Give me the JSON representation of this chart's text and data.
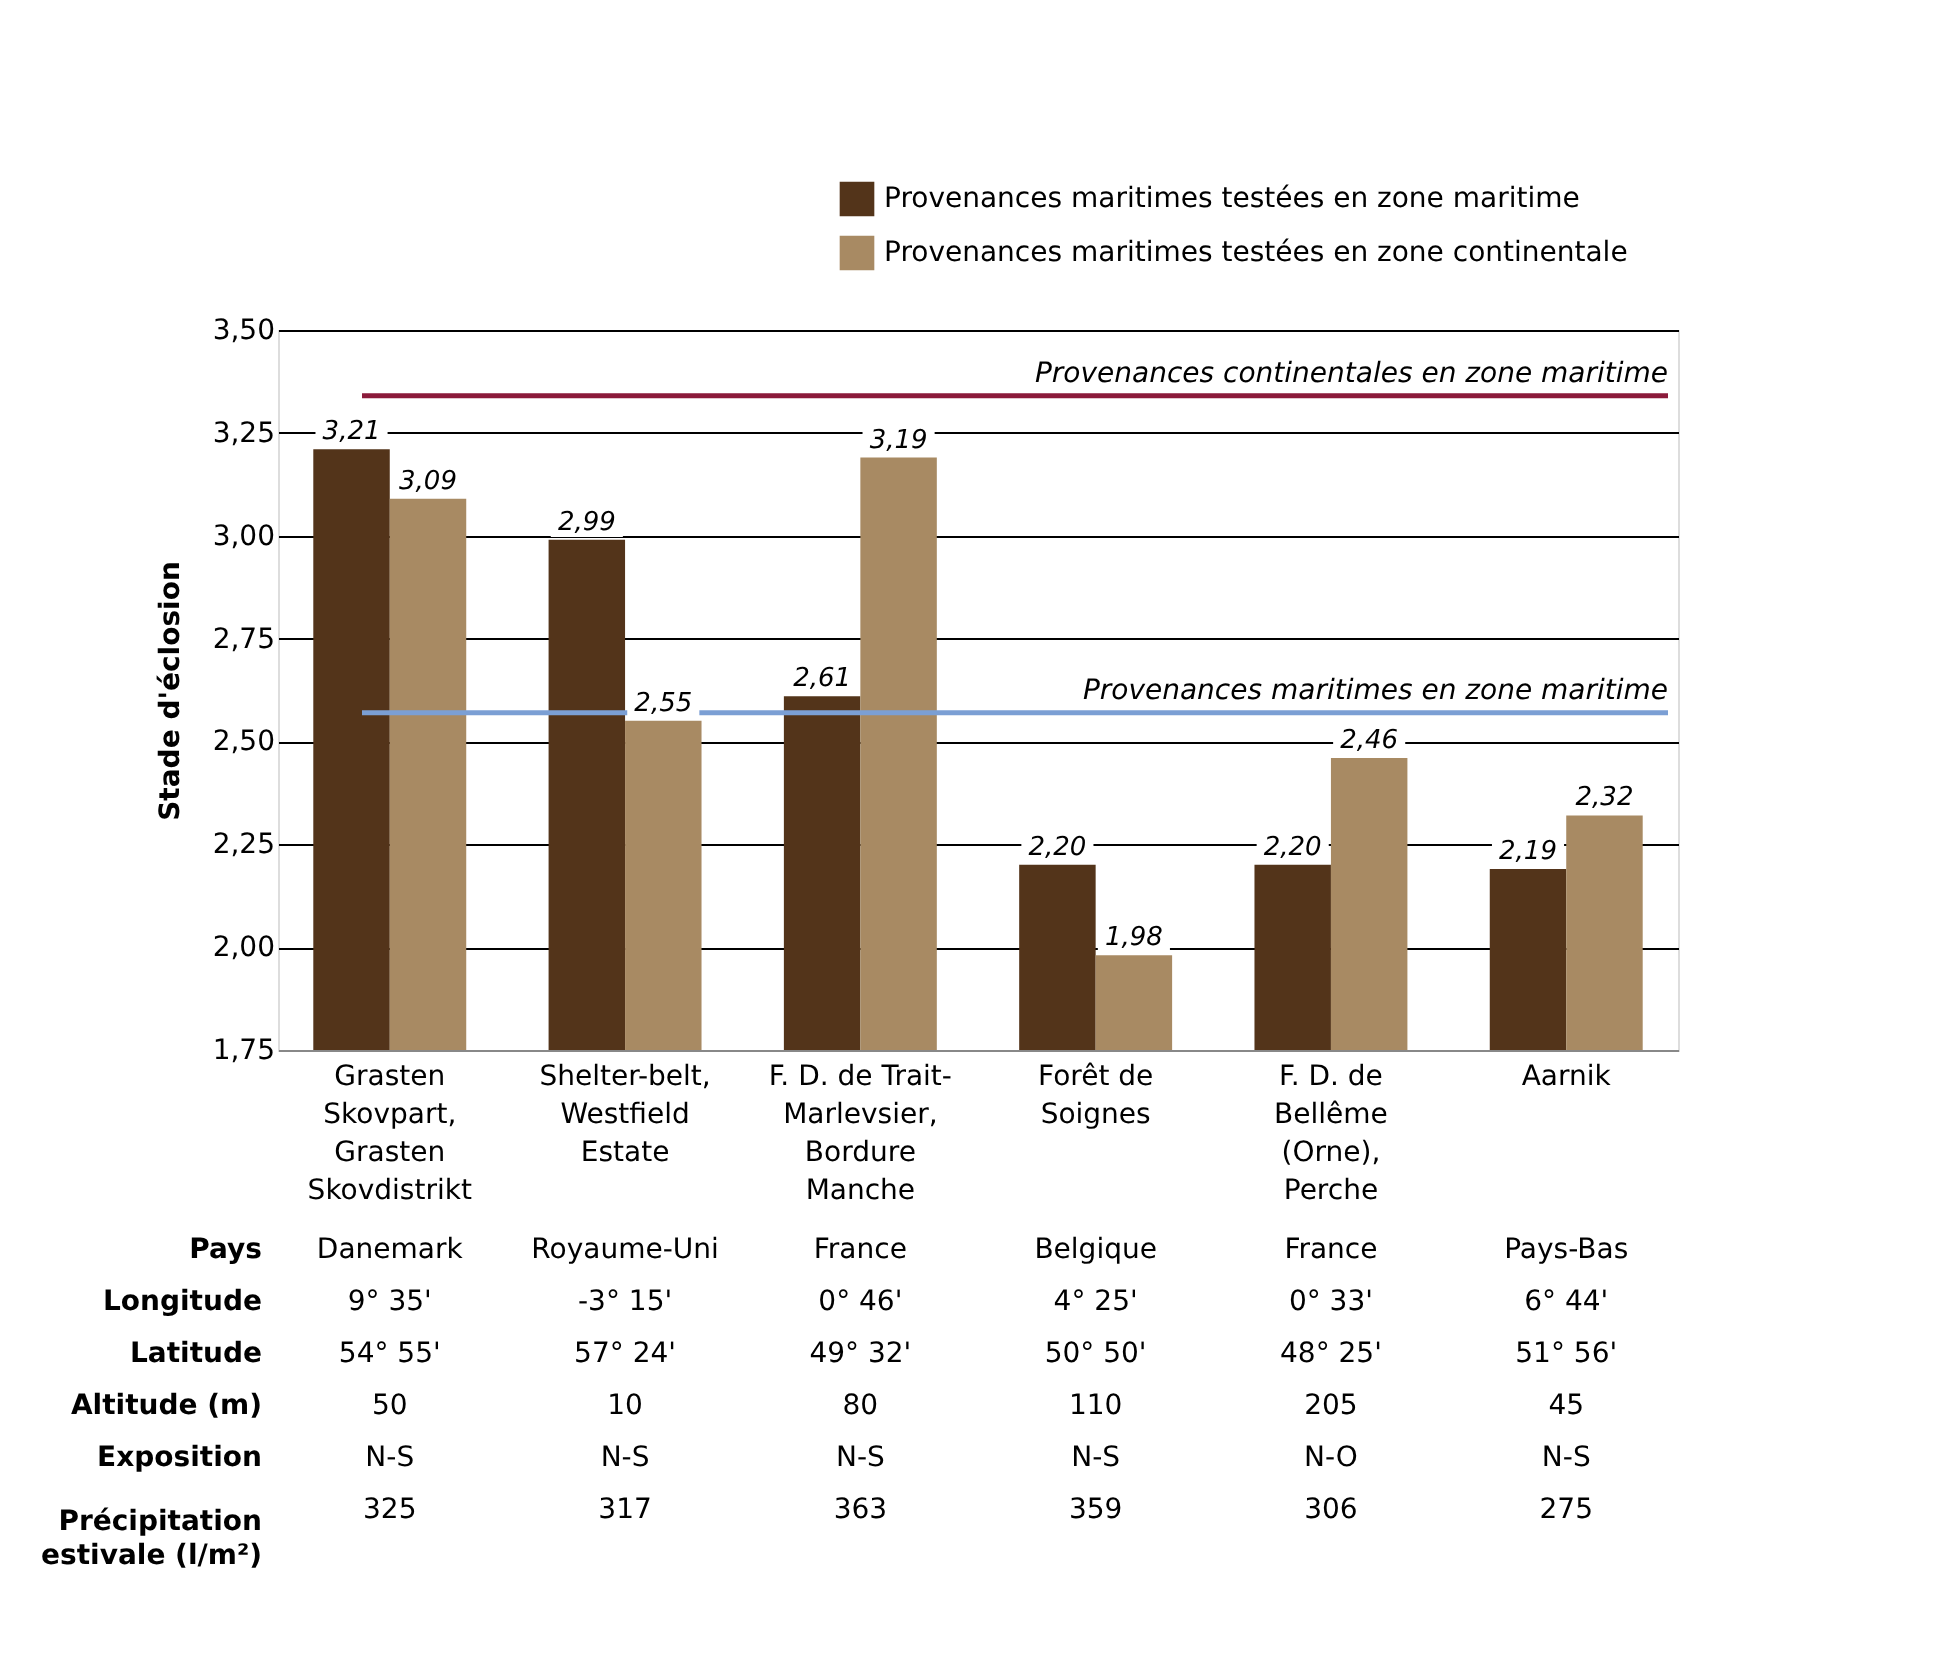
{
  "chart_data": [
    {
      "type": "bar",
      "ylabel": "Stade d'éclosion",
      "categories": [
        "Grasten\nSkovpart,\nGrasten\nSkovdistrikt",
        "Shelter-belt,\nWestfield\nEstate",
        "F. D. de Trait-\nMarlevsier,\nBordure\nManche",
        "Forêt de\nSoignes",
        "F. D. de\nBellême\n(Orne),\nPerche",
        "Aarnik"
      ],
      "series": [
        {
          "name": "Provenances maritimes testées en zone maritime",
          "color": "#53341a",
          "values": [
            3.21,
            2.99,
            2.61,
            2.2,
            2.2,
            2.19
          ],
          "value_labels": [
            "3,21",
            "2,99",
            "2,61",
            "2,20",
            "2,20",
            "2,19"
          ]
        },
        {
          "name": "Provenances maritimes testées en zone continentale",
          "color": "#a88a63",
          "values": [
            3.09,
            2.55,
            3.19,
            1.98,
            2.46,
            2.32
          ],
          "value_labels": [
            "3,09",
            "2,55",
            "3,19",
            "1,98",
            "2,46",
            "2,32"
          ]
        }
      ],
      "ylim": [
        1.75,
        3.5
      ],
      "yticks": [
        {
          "value": 1.75,
          "label": "1,75"
        },
        {
          "value": 2.0,
          "label": "2,00"
        },
        {
          "value": 2.25,
          "label": "2,25"
        },
        {
          "value": 2.5,
          "label": "2,50"
        },
        {
          "value": 2.75,
          "label": "2,75"
        },
        {
          "value": 3.0,
          "label": "3,00"
        },
        {
          "value": 3.25,
          "label": "3,25"
        },
        {
          "value": 3.5,
          "label": "3,50"
        }
      ],
      "grid": "y",
      "legend": "top right",
      "ref_lines": [
        {
          "axis": "y",
          "value": 3.34,
          "label": "Provenances continentales en zone maritime",
          "color": "#8b1a3a"
        },
        {
          "axis": "y",
          "value": 2.57,
          "label": "Provenances maritimes en zone maritime",
          "color": "#7b9fd4"
        }
      ]
    },
    {
      "type": "other",
      "annotations": [
        "Pays",
        "Danemark",
        "Royaume-Uni",
        "France",
        "Belgique",
        "France",
        "Pays-Bas",
        "Longitude",
        "9° 35'",
        "-3° 15'",
        "0° 46'",
        "4° 25'",
        "0° 33'",
        "6° 44'",
        "Latitude",
        "54° 55'",
        "57° 24'",
        "49° 32'",
        "50° 50'",
        "48° 25'",
        "51° 56'",
        "Altitude (m)",
        "50",
        "10",
        "80",
        "110",
        "205",
        "45",
        "Exposition",
        "N-S",
        "N-S",
        "N-S",
        "N-S",
        "N-O",
        "N-S",
        "Précipitation estivale (l/m²)",
        "325",
        "317",
        "363",
        "359",
        "306",
        "275"
      ]
    }
  ]
}
